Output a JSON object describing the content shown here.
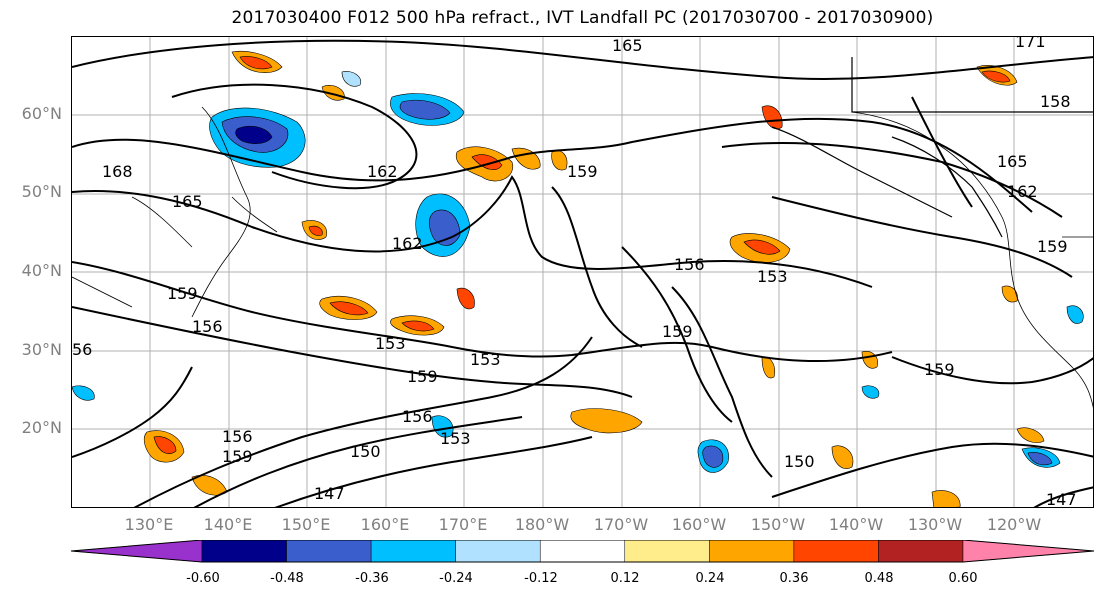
{
  "title": "2017030400 F012 500 hPa refract., IVT Landfall PC (2017030700 - 2017030900)",
  "map": {
    "lat_labels": [
      "60°N",
      "50°N",
      "40°N",
      "30°N",
      "20°N"
    ],
    "lon_labels": [
      "130°E",
      "140°E",
      "150°E",
      "160°E",
      "170°E",
      "180°W",
      "170°W",
      "160°W",
      "150°W",
      "140°W",
      "130°W",
      "120°W"
    ],
    "contour_labels": [
      "165",
      "171",
      "158",
      "168",
      "165",
      "162",
      "159",
      "162",
      "165",
      "162",
      "159",
      "156",
      "153",
      "159",
      "156",
      "153",
      "159",
      "156",
      "153",
      "159",
      "156",
      "150",
      "147",
      "150",
      "147",
      "159",
      "159",
      "153",
      "56"
    ]
  },
  "colorbar": {
    "ticks": [
      "-0.60",
      "-0.48",
      "-0.36",
      "-0.24",
      "-0.12",
      "0.12",
      "0.24",
      "0.36",
      "0.48",
      "0.60"
    ],
    "colors": [
      "#9932cc",
      "#00008b",
      "#3a5fcd",
      "#00bfff",
      "#b0e2ff",
      "#ffffff",
      "#ffec8b",
      "#ffa500",
      "#ff4500",
      "#b22222",
      "#ff82ab"
    ]
  }
}
